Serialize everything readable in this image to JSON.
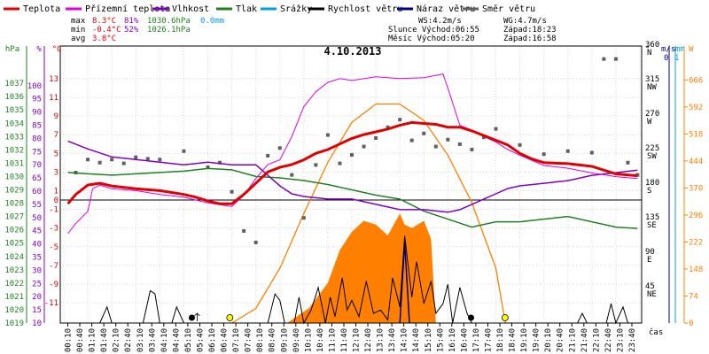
{
  "chart_data": {
    "type": "line",
    "title": "4.10.2013",
    "x_label": "čas",
    "x_ticks": [
      "00:10",
      "00:40",
      "01:10",
      "01:40",
      "02:10",
      "02:40",
      "03:10",
      "03:40",
      "04:10",
      "04:40",
      "05:10",
      "05:40",
      "06:10",
      "06:40",
      "07:10",
      "07:40",
      "08:10",
      "08:40",
      "09:10",
      "09:40",
      "10:10",
      "10:40",
      "11:10",
      "11:40",
      "12:10",
      "12:40",
      "13:10",
      "13:40",
      "14:10",
      "14:40",
      "15:10",
      "15:40",
      "16:10",
      "16:40",
      "17:10",
      "17:40",
      "18:10",
      "18:40",
      "19:10",
      "19:40",
      "20:10",
      "20:40",
      "21:10",
      "21:40",
      "22:10",
      "22:40",
      "23:10",
      "23:40"
    ],
    "legend": [
      {
        "name": "Teplota",
        "color": "#e00000"
      },
      {
        "name": "Přízemní teplota",
        "color": "#e000e0"
      },
      {
        "name": "Vlhkost",
        "color": "#8000c0"
      },
      {
        "name": "Tlak",
        "color": "#208020"
      },
      {
        "name": "Srážky",
        "color": "#00a0e0"
      },
      {
        "name": "Rychlost větru",
        "color": "#000000"
      },
      {
        "name": "Náraz větru",
        "color": "#000080"
      },
      {
        "name": "Směr větru",
        "color": "#606060"
      }
    ],
    "axes": {
      "hpa": {
        "label": "hPa",
        "color": "#208020",
        "range": [
          1019,
          1038
        ],
        "ticks": [
          "1037",
          "1036",
          "1035",
          "1034",
          "1033",
          "1032",
          "1031",
          "1030",
          "1029",
          "1028",
          "1027",
          "1026",
          "1025",
          "1024",
          "1023",
          "1022",
          "1021",
          "1020",
          "1019"
        ]
      },
      "pct": {
        "label": "%",
        "color": "#8000c0",
        "range": [
          10,
          105
        ],
        "ticks": [
          "100",
          "95",
          "90",
          "85",
          "80",
          "75",
          "70",
          "65",
          "60",
          "55",
          "50",
          "45",
          "40",
          "35",
          "30",
          "25",
          "20",
          "15",
          "10"
        ]
      },
      "temp": {
        "label": "°C",
        "color": "#e00000",
        "range": [
          -11,
          14
        ],
        "ticks": [
          "13",
          "11",
          "9",
          "7",
          "5",
          "3",
          "1",
          "0",
          "-1",
          "-3",
          "-5",
          "-7",
          "-9",
          "-11"
        ]
      },
      "dir": {
        "label": "°",
        "color": "#000000",
        "range": [
          0,
          360
        ],
        "ticks": [
          "360",
          "315",
          "270",
          "225",
          "180",
          "135",
          "90",
          "45"
        ],
        "compass": [
          "N",
          "NW",
          "W",
          "SW",
          "S",
          "SE",
          "E",
          "NE"
        ]
      },
      "wind": {
        "label": "m/s",
        "color": "#000080",
        "ticks": [
          "0",
          "1"
        ]
      },
      "rain": {
        "label": "mm",
        "color": "#00a0e0",
        "ticks": [
          "0",
          "1"
        ]
      },
      "solar": {
        "label": "W",
        "color": "#ff8000",
        "range": [
          0,
          740
        ],
        "ticks": [
          "666",
          "592",
          "518",
          "444",
          "370",
          "296",
          "222",
          "148",
          "74",
          "0"
        ]
      }
    },
    "stats": {
      "rows": [
        {
          "label": "max",
          "temp": "8.3°C",
          "hum": "81%",
          "pres": "1030.6hPa",
          "rain": "0.0mm"
        },
        {
          "label": "min",
          "temp": "-0.4°C",
          "hum": "52%",
          "pres": "1026.1hPa",
          "rain": ""
        },
        {
          "label": "avg",
          "temp": "3.8°C",
          "hum": "",
          "pres": "",
          "rain": ""
        }
      ],
      "ws": "WS:4.2m/s",
      "wg": "WG:4.7m/s",
      "sun": "Slunce Východ:06:55",
      "sun_set": "Západ:18:23",
      "moon": "Měsíc  Východ:05:20",
      "moon_set": "Západ:16:58"
    },
    "series": {
      "temperature": [
        [
          0.17,
          -0.4
        ],
        [
          0.5,
          0.6
        ],
        [
          1.0,
          1.6
        ],
        [
          1.5,
          1.8
        ],
        [
          2.0,
          1.5
        ],
        [
          3.0,
          1.2
        ],
        [
          4.0,
          1.0
        ],
        [
          5.0,
          0.6
        ],
        [
          5.5,
          0.3
        ],
        [
          6.0,
          -0.1
        ],
        [
          6.5,
          -0.4
        ],
        [
          7.0,
          -0.4
        ],
        [
          7.5,
          0.6
        ],
        [
          8.0,
          1.8
        ],
        [
          8.5,
          3.0
        ],
        [
          9.0,
          3.5
        ],
        [
          9.5,
          3.8
        ],
        [
          10.0,
          4.3
        ],
        [
          10.5,
          5.0
        ],
        [
          11.0,
          5.4
        ],
        [
          11.5,
          6.0
        ],
        [
          12.0,
          6.6
        ],
        [
          12.5,
          7.0
        ],
        [
          13.0,
          7.3
        ],
        [
          13.5,
          7.6
        ],
        [
          14.0,
          8.0
        ],
        [
          14.5,
          8.3
        ],
        [
          15.0,
          8.2
        ],
        [
          15.5,
          8.1
        ],
        [
          16.0,
          7.8
        ],
        [
          16.5,
          7.8
        ],
        [
          17.0,
          7.4
        ],
        [
          17.5,
          6.9
        ],
        [
          18.0,
          6.4
        ],
        [
          18.5,
          5.9
        ],
        [
          19.0,
          5.0
        ],
        [
          19.5,
          4.4
        ],
        [
          20.0,
          4.0
        ],
        [
          21.0,
          3.9
        ],
        [
          22.0,
          3.6
        ],
        [
          23.0,
          2.8
        ],
        [
          23.9,
          2.6
        ]
      ],
      "ground_temperature": [
        [
          0.17,
          -3.6
        ],
        [
          0.5,
          -2.5
        ],
        [
          1.0,
          -1.2
        ],
        [
          1.2,
          1.2
        ],
        [
          1.5,
          1.6
        ],
        [
          2.0,
          1.2
        ],
        [
          3.0,
          1.0
        ],
        [
          4.0,
          0.6
        ],
        [
          5.0,
          0.3
        ],
        [
          6.0,
          -0.3
        ],
        [
          7.0,
          -0.7
        ],
        [
          7.5,
          0.5
        ],
        [
          8.0,
          2.3
        ],
        [
          8.5,
          3.8
        ],
        [
          9.0,
          4.3
        ],
        [
          9.5,
          6.8
        ],
        [
          10.0,
          10.0
        ],
        [
          10.5,
          11.6
        ],
        [
          11.0,
          12.6
        ],
        [
          11.5,
          13.0
        ],
        [
          12.0,
          12.8
        ],
        [
          13.0,
          13.2
        ],
        [
          14.0,
          13.0
        ],
        [
          15.0,
          13.1
        ],
        [
          15.8,
          13.5
        ],
        [
          16.0,
          12.0
        ],
        [
          16.5,
          8.0
        ],
        [
          17.0,
          7.5
        ],
        [
          17.5,
          6.8
        ],
        [
          18.0,
          6.2
        ],
        [
          18.5,
          5.4
        ],
        [
          19.0,
          4.8
        ],
        [
          20.0,
          3.7
        ],
        [
          21.0,
          3.4
        ],
        [
          22.0,
          2.9
        ],
        [
          23.0,
          2.5
        ],
        [
          23.9,
          2.3
        ]
      ],
      "humidity": [
        [
          0.17,
          79
        ],
        [
          1.0,
          76
        ],
        [
          2.0,
          73
        ],
        [
          3.0,
          72
        ],
        [
          4.0,
          71
        ],
        [
          5.0,
          70
        ],
        [
          6.0,
          71
        ],
        [
          7.0,
          70
        ],
        [
          8.0,
          70
        ],
        [
          8.5,
          66
        ],
        [
          9.0,
          62
        ],
        [
          9.5,
          59
        ],
        [
          10.0,
          58
        ],
        [
          11.0,
          57
        ],
        [
          12.0,
          57
        ],
        [
          13.0,
          55
        ],
        [
          14.0,
          53
        ],
        [
          15.0,
          53
        ],
        [
          16.0,
          52
        ],
        [
          16.5,
          53
        ],
        [
          17.0,
          55
        ],
        [
          17.5,
          57
        ],
        [
          18.0,
          59
        ],
        [
          18.5,
          61
        ],
        [
          19.0,
          62
        ],
        [
          20.0,
          63
        ],
        [
          21.0,
          64
        ],
        [
          22.0,
          66
        ],
        [
          23.0,
          67
        ],
        [
          23.9,
          68
        ]
      ],
      "pressure": [
        [
          0.17,
          1030.3
        ],
        [
          1.0,
          1030.2
        ],
        [
          2.0,
          1030.1
        ],
        [
          3.0,
          1030.2
        ],
        [
          4.0,
          1030.3
        ],
        [
          5.0,
          1030.4
        ],
        [
          6.0,
          1030.6
        ],
        [
          7.0,
          1030.5
        ],
        [
          8.0,
          1030.0
        ],
        [
          9.0,
          1029.9
        ],
        [
          10.0,
          1029.7
        ],
        [
          11.0,
          1029.4
        ],
        [
          12.0,
          1029.0
        ],
        [
          13.0,
          1028.6
        ],
        [
          14.0,
          1028.3
        ],
        [
          15.0,
          1027.4
        ],
        [
          16.0,
          1026.8
        ],
        [
          17.0,
          1026.2
        ],
        [
          18.0,
          1026.6
        ],
        [
          19.0,
          1026.6
        ],
        [
          20.0,
          1026.8
        ],
        [
          21.0,
          1027.0
        ],
        [
          22.0,
          1026.6
        ],
        [
          23.0,
          1026.2
        ],
        [
          23.9,
          1026.1
        ]
      ],
      "solar_max": [
        [
          7.0,
          0
        ],
        [
          8.0,
          40
        ],
        [
          9.0,
          150
        ],
        [
          10.0,
          300
        ],
        [
          11.0,
          440
        ],
        [
          12.0,
          550
        ],
        [
          13.0,
          600
        ],
        [
          14.0,
          600
        ],
        [
          15.0,
          555
        ],
        [
          16.0,
          460
        ],
        [
          17.0,
          330
        ],
        [
          18.0,
          150
        ],
        [
          18.4,
          0
        ]
      ],
      "solar": [
        [
          9.3,
          0
        ],
        [
          10.2,
          40
        ],
        [
          11.0,
          110
        ],
        [
          11.5,
          200
        ],
        [
          12.0,
          250
        ],
        [
          12.5,
          280
        ],
        [
          13.0,
          270
        ],
        [
          13.5,
          240
        ],
        [
          14.0,
          300
        ],
        [
          14.2,
          270
        ],
        [
          14.5,
          260
        ],
        [
          15.0,
          280
        ],
        [
          15.3,
          230
        ],
        [
          15.5,
          0
        ]
      ],
      "wind_speed": [
        [
          0.0,
          0
        ],
        [
          1.5,
          0
        ],
        [
          1.8,
          0.5
        ],
        [
          2.0,
          0
        ],
        [
          3.3,
          0
        ],
        [
          3.6,
          1.0
        ],
        [
          3.8,
          0.9
        ],
        [
          4.0,
          0
        ],
        [
          4.5,
          0
        ],
        [
          4.7,
          0.5
        ],
        [
          5.0,
          0
        ],
        [
          6.0,
          0
        ],
        [
          6.5,
          0
        ],
        [
          8.5,
          0
        ],
        [
          8.8,
          0.9
        ],
        [
          9.0,
          0.7
        ],
        [
          9.2,
          0
        ],
        [
          9.6,
          0
        ],
        [
          9.8,
          0.8
        ],
        [
          10.0,
          0
        ],
        [
          10.3,
          0.4
        ],
        [
          10.6,
          1.1
        ],
        [
          10.9,
          0
        ],
        [
          11.1,
          0.8
        ],
        [
          11.3,
          0.2
        ],
        [
          11.6,
          1.4
        ],
        [
          11.8,
          0.4
        ],
        [
          12.0,
          0.7
        ],
        [
          12.3,
          0.2
        ],
        [
          12.6,
          1.3
        ],
        [
          12.9,
          0.3
        ],
        [
          13.2,
          0.4
        ],
        [
          13.5,
          0.1
        ],
        [
          13.7,
          1.4
        ],
        [
          14.0,
          0.5
        ],
        [
          14.2,
          2.7
        ],
        [
          14.5,
          0.8
        ],
        [
          14.7,
          1.9
        ],
        [
          15.0,
          0.6
        ],
        [
          15.3,
          1.3
        ],
        [
          15.5,
          0.3
        ],
        [
          15.8,
          0.6
        ],
        [
          16.0,
          1.2
        ],
        [
          16.2,
          0
        ],
        [
          16.5,
          1.1
        ],
        [
          16.8,
          0.3
        ],
        [
          17.0,
          0
        ],
        [
          21.4,
          0
        ],
        [
          21.6,
          0.3
        ],
        [
          21.8,
          0
        ],
        [
          22.6,
          0
        ],
        [
          22.8,
          0.6
        ],
        [
          23.0,
          0
        ],
        [
          23.3,
          0.5
        ],
        [
          23.5,
          0
        ]
      ],
      "wind_gust": [
        [
          14.0,
          0
        ],
        [
          14.2,
          2.5
        ],
        [
          14.4,
          0
        ]
      ],
      "wind_direction": [
        [
          0.5,
          196
        ],
        [
          1.0,
          213
        ],
        [
          1.5,
          209
        ],
        [
          2.0,
          213
        ],
        [
          2.5,
          208
        ],
        [
          3.0,
          216
        ],
        [
          3.5,
          214
        ],
        [
          4.0,
          213
        ],
        [
          5.0,
          224
        ],
        [
          6.0,
          203
        ],
        [
          6.5,
          209
        ],
        [
          7.0,
          171
        ],
        [
          7.5,
          120
        ],
        [
          8.0,
          105
        ],
        [
          8.5,
          218
        ],
        [
          9.0,
          228
        ],
        [
          9.5,
          193
        ],
        [
          10.0,
          137
        ],
        [
          10.5,
          206
        ],
        [
          11.0,
          245
        ],
        [
          11.5,
          208
        ],
        [
          12.0,
          219
        ],
        [
          12.5,
          230
        ],
        [
          13.0,
          241
        ],
        [
          13.5,
          255
        ],
        [
          14.0,
          265
        ],
        [
          14.5,
          238
        ],
        [
          15.0,
          247
        ],
        [
          15.5,
          230
        ],
        [
          16.0,
          239
        ],
        [
          16.5,
          233
        ],
        [
          17.0,
          226
        ],
        [
          17.5,
          242
        ],
        [
          18.0,
          253
        ],
        [
          19.0,
          232
        ],
        [
          20.0,
          220
        ],
        [
          21.0,
          224
        ],
        [
          22.0,
          222
        ],
        [
          22.5,
          344
        ],
        [
          23.0,
          344
        ],
        [
          23.5,
          209
        ],
        [
          23.9,
          193
        ]
      ]
    }
  }
}
